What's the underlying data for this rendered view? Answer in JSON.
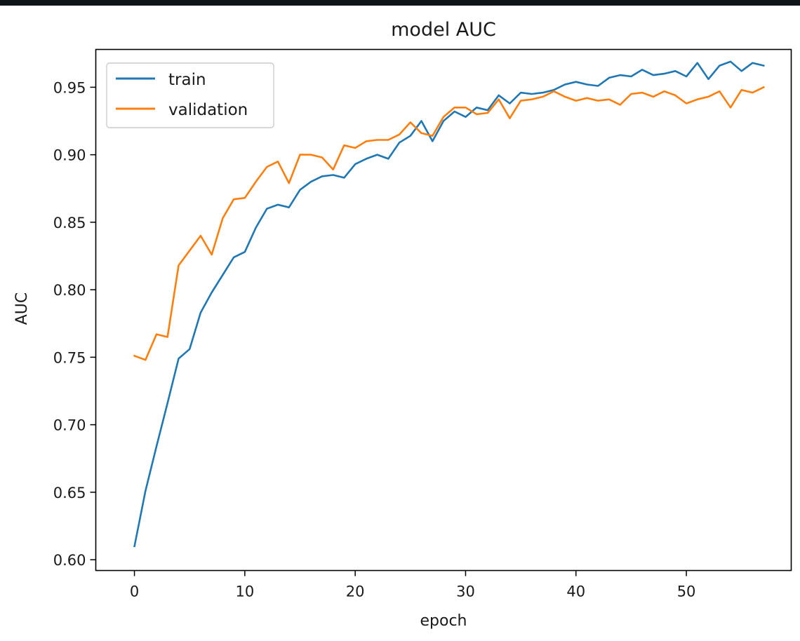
{
  "chart_data": {
    "type": "line",
    "title": "model AUC",
    "xlabel": "epoch",
    "ylabel": "AUC",
    "xlim": [
      -3.5,
      59.5
    ],
    "ylim": [
      0.592,
      0.978
    ],
    "xticks": [
      0,
      10,
      20,
      30,
      40,
      50
    ],
    "yticks": [
      0.6,
      0.65,
      0.7,
      0.75,
      0.8,
      0.85,
      0.9,
      0.95
    ],
    "xtick_labels": [
      "0",
      "10",
      "20",
      "30",
      "40",
      "50"
    ],
    "ytick_labels": [
      "0.60",
      "0.65",
      "0.70",
      "0.75",
      "0.80",
      "0.85",
      "0.90",
      "0.95"
    ],
    "legend_position": "upper-left",
    "grid": false,
    "x": [
      0,
      1,
      2,
      3,
      4,
      5,
      6,
      7,
      8,
      9,
      10,
      11,
      12,
      13,
      14,
      15,
      16,
      17,
      18,
      19,
      20,
      21,
      22,
      23,
      24,
      25,
      26,
      27,
      28,
      29,
      30,
      31,
      32,
      33,
      34,
      35,
      36,
      37,
      38,
      39,
      40,
      41,
      42,
      43,
      44,
      45,
      46,
      47,
      48,
      49,
      50,
      51,
      52,
      53,
      54,
      55,
      56,
      57
    ],
    "series": [
      {
        "name": "train",
        "color": "#1f77b4",
        "values": [
          0.61,
          0.651,
          0.684,
          0.716,
          0.749,
          0.756,
          0.783,
          0.798,
          0.811,
          0.824,
          0.828,
          0.846,
          0.86,
          0.863,
          0.861,
          0.874,
          0.88,
          0.884,
          0.885,
          0.883,
          0.893,
          0.897,
          0.9,
          0.897,
          0.909,
          0.914,
          0.925,
          0.91,
          0.925,
          0.932,
          0.928,
          0.935,
          0.933,
          0.944,
          0.938,
          0.946,
          0.945,
          0.946,
          0.948,
          0.952,
          0.954,
          0.952,
          0.951,
          0.957,
          0.959,
          0.958,
          0.963,
          0.959,
          0.96,
          0.962,
          0.958,
          0.968,
          0.956,
          0.966,
          0.969,
          0.962,
          0.968,
          0.966
        ]
      },
      {
        "name": "validation",
        "color": "#ff7f0e",
        "values": [
          0.751,
          0.748,
          0.767,
          0.765,
          0.818,
          0.829,
          0.84,
          0.826,
          0.853,
          0.867,
          0.868,
          0.88,
          0.891,
          0.895,
          0.879,
          0.9,
          0.9,
          0.898,
          0.889,
          0.907,
          0.905,
          0.91,
          0.911,
          0.911,
          0.915,
          0.924,
          0.916,
          0.914,
          0.928,
          0.935,
          0.935,
          0.93,
          0.931,
          0.941,
          0.927,
          0.94,
          0.941,
          0.943,
          0.947,
          0.943,
          0.94,
          0.942,
          0.94,
          0.941,
          0.937,
          0.945,
          0.946,
          0.943,
          0.947,
          0.944,
          0.938,
          0.941,
          0.943,
          0.947,
          0.935,
          0.948,
          0.946,
          0.95
        ]
      }
    ]
  }
}
